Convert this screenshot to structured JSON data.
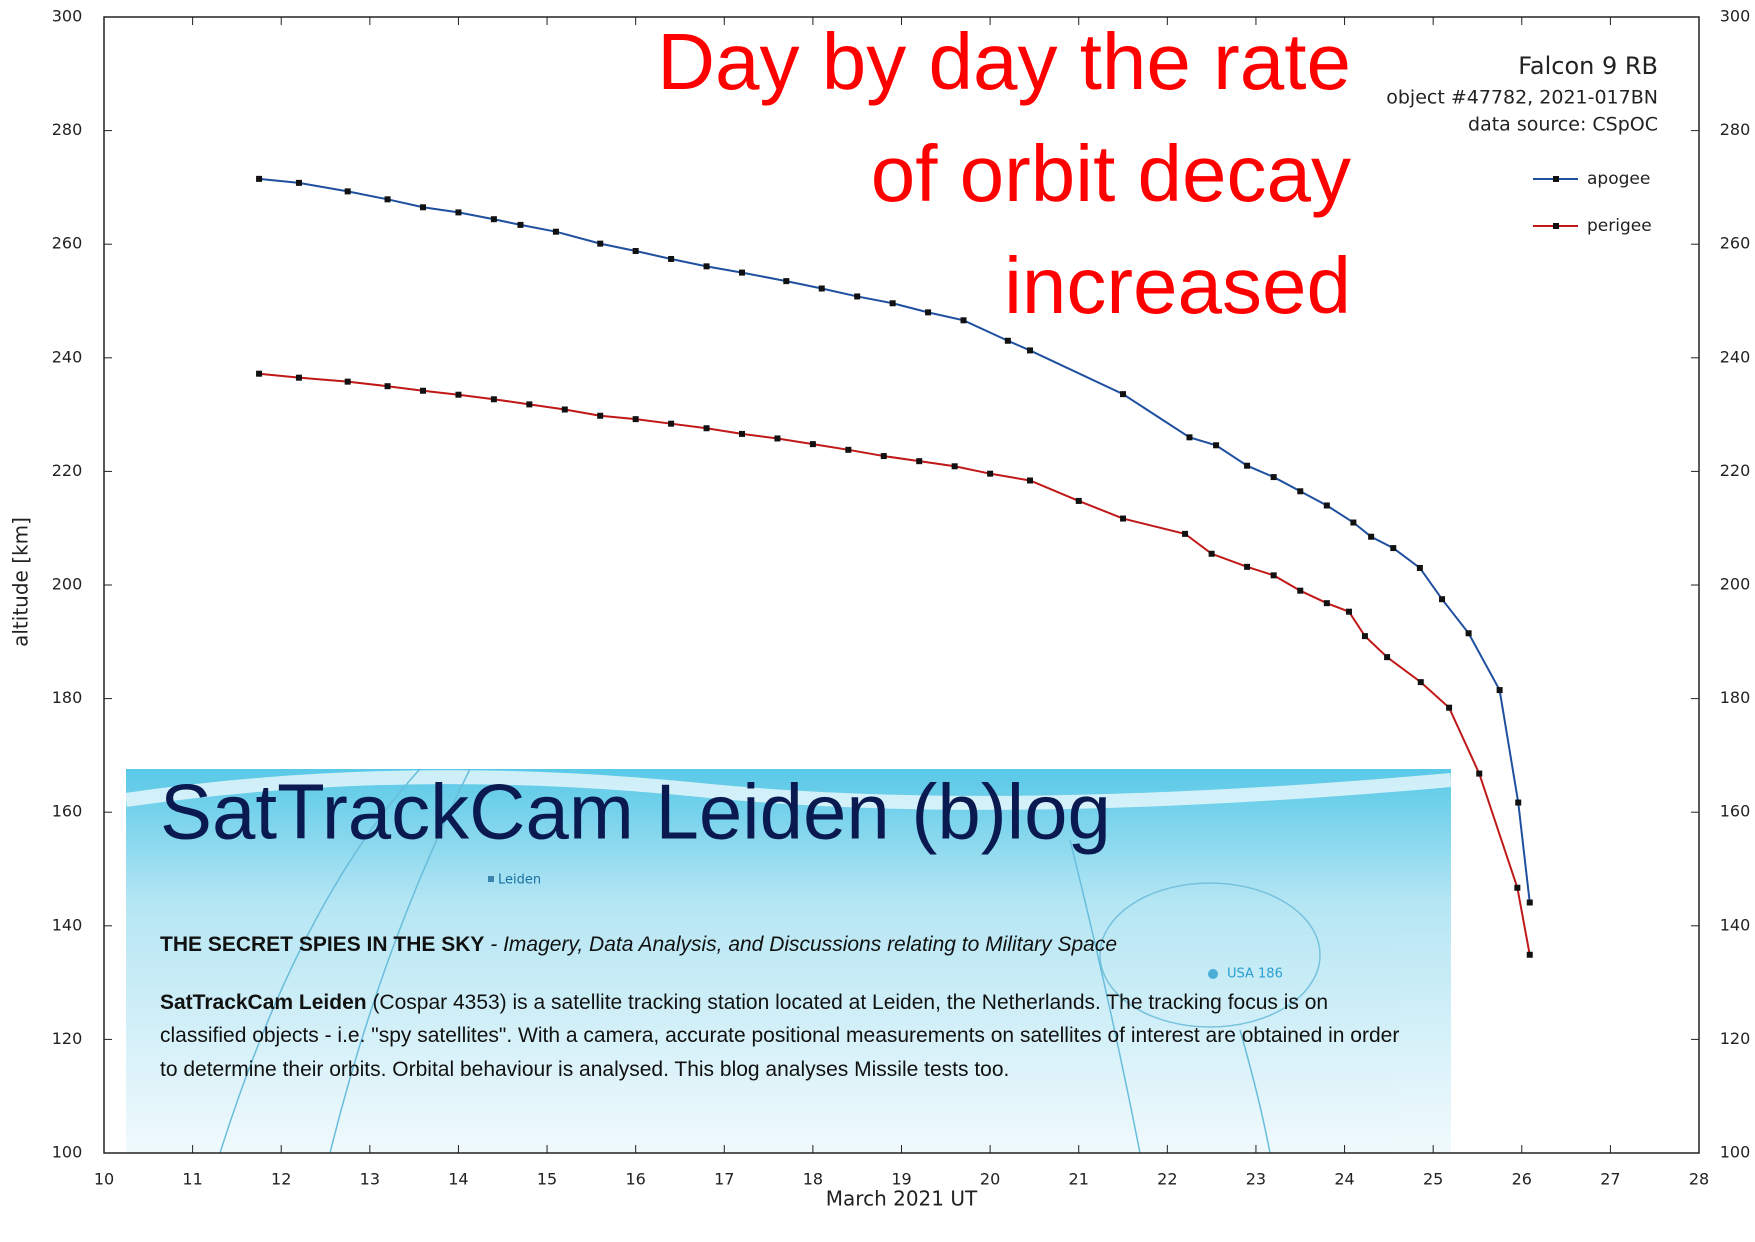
{
  "chart_data": {
    "type": "line",
    "xlabel": "March 2021 UT",
    "ylabel": "altitude [km]",
    "info": [
      "Falcon 9 RB",
      "object #47782, 2021-017BN",
      "data source: CSpOC"
    ],
    "annotation": [
      "Day by day the rate",
      "of orbit decay",
      "increased"
    ],
    "xlim": [
      10,
      28
    ],
    "xticks": [
      10,
      11,
      12,
      13,
      14,
      15,
      16,
      17,
      18,
      19,
      20,
      21,
      22,
      23,
      24,
      25,
      26,
      27,
      28
    ],
    "ylim": [
      100,
      300
    ],
    "yticks": [
      100,
      120,
      140,
      160,
      180,
      200,
      220,
      240,
      260,
      280,
      300
    ],
    "y2lim": [
      100,
      300
    ],
    "y2ticks": [
      100,
      120,
      140,
      160,
      180,
      200,
      220,
      240,
      260,
      280,
      300
    ],
    "legend": "upper right",
    "series": [
      {
        "name": "apogee",
        "color": "#1f4f9f",
        "x": [
          11.75,
          12.2,
          12.75,
          13.2,
          13.6,
          14.0,
          14.4,
          14.7,
          15.1,
          15.6,
          16.0,
          16.4,
          16.8,
          17.2,
          17.7,
          18.1,
          18.5,
          18.9,
          19.3,
          19.7,
          20.2,
          20.45,
          21.5,
          22.25,
          22.55,
          22.9,
          23.2,
          23.5,
          23.8,
          24.1,
          24.3,
          24.55,
          24.85,
          25.1,
          25.4,
          25.75,
          25.96,
          26.09
        ],
        "values": [
          271.5,
          270.8,
          269.3,
          267.9,
          266.5,
          265.6,
          264.4,
          263.4,
          262.2,
          260.1,
          258.8,
          257.4,
          256.1,
          255.0,
          253.5,
          252.2,
          250.8,
          249.6,
          248.0,
          246.6,
          243.0,
          241.3,
          233.6,
          226.0,
          224.6,
          221.0,
          219.0,
          216.5,
          214.0,
          211.0,
          208.5,
          206.5,
          203.0,
          197.5,
          191.5,
          181.5,
          161.7,
          144.1
        ]
      },
      {
        "name": "perigee",
        "color": "#c01818",
        "x": [
          11.75,
          12.2,
          12.75,
          13.2,
          13.6,
          14.0,
          14.4,
          14.8,
          15.2,
          15.6,
          16.0,
          16.4,
          16.8,
          17.2,
          17.6,
          18.0,
          18.4,
          18.8,
          19.2,
          19.6,
          20.0,
          20.45,
          21.0,
          21.5,
          22.2,
          22.5,
          22.9,
          23.2,
          23.5,
          23.8,
          24.05,
          24.23,
          24.48,
          24.86,
          25.18,
          25.52,
          25.95,
          26.09
        ],
        "values": [
          237.2,
          236.5,
          235.8,
          235.0,
          234.2,
          233.5,
          232.7,
          231.8,
          230.9,
          229.8,
          229.2,
          228.4,
          227.6,
          226.6,
          225.8,
          224.8,
          223.8,
          222.7,
          221.8,
          220.9,
          219.6,
          218.4,
          214.8,
          211.7,
          209.0,
          205.5,
          203.2,
          201.7,
          199.0,
          196.8,
          195.3,
          191.0,
          187.3,
          182.9,
          178.4,
          166.8,
          146.7,
          134.9
        ]
      }
    ]
  },
  "blog": {
    "title": "SatTrackCam Leiden (b)log",
    "map_labels": [
      "Leiden",
      "USA 186"
    ],
    "header": "THE SECRET SPIES IN THE SKY",
    "subheader": "- Imagery, Data Analysis, and Discussions relating to Military Space",
    "lead": "SatTrackCam Leiden",
    "text": "(Cospar 4353) is a satellite tracking station located at Leiden, the Netherlands. The tracking focus is on classified objects - i.e. \"spy satellites\". With a camera, accurate positional measurements on satellites of interest are obtained in order to determine their orbits. Orbital behaviour is analysed. This blog analyses Missile tests too."
  }
}
